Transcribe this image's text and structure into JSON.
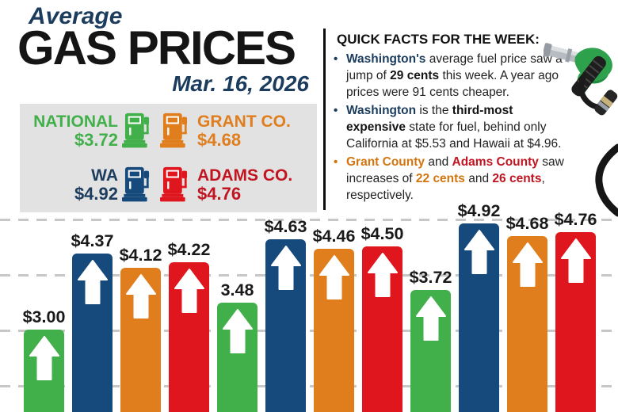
{
  "header": {
    "kicker": "Average",
    "title": "GAS PRICES",
    "date": "Mar. 16, 2026"
  },
  "legend": {
    "items": [
      {
        "label": "NATIONAL",
        "value": "$3.72",
        "text_color": "green",
        "pump_color": "green"
      },
      {
        "label": "GRANT CO.",
        "value": "$4.68",
        "text_color": "orange",
        "pump_color": "orange"
      },
      {
        "label": "WA",
        "value": "$4.92",
        "text_color": "navy_text",
        "pump_color": "blue"
      },
      {
        "label": "ADAMS CO.",
        "value": "$4.76",
        "text_color": "red_text",
        "pump_color": "red"
      }
    ]
  },
  "quick_facts": {
    "heading": "QUICK FACTS FOR THE WEEK:",
    "bullets": [
      {
        "bullet_color": "navy_text",
        "segments": [
          {
            "style": "navy",
            "text": "Washington's"
          },
          {
            "style": "plain",
            "text": " average fuel price saw a\njump of "
          },
          {
            "style": "bold",
            "text": "29 cents"
          },
          {
            "style": "plain",
            "text": " this week. A year ago\nprices were 91 cents cheaper."
          }
        ]
      },
      {
        "bullet_color": "navy_text",
        "segments": [
          {
            "style": "navy",
            "text": "Washington"
          },
          {
            "style": "plain",
            "text": " is the "
          },
          {
            "style": "bold",
            "text": "third-most\nexpensive"
          },
          {
            "style": "plain",
            "text": " state for fuel, behind only\nCalifornia at $5.53 and Hawaii at $4.96."
          }
        ]
      },
      {
        "bullet_color": "orange_text",
        "segments": [
          {
            "style": "orange",
            "text": "Grant County"
          },
          {
            "style": "plain",
            "text": " and "
          },
          {
            "style": "red",
            "text": "Adams County"
          },
          {
            "style": "plain",
            "text": " saw\nincreases of "
          },
          {
            "style": "orange",
            "text": "22 cents"
          },
          {
            "style": "plain",
            "text": " and "
          },
          {
            "style": "red",
            "text": "26 cents"
          },
          {
            "style": "plain",
            "text": ",\nrespectively."
          }
        ]
      }
    ]
  },
  "chart_data": {
    "type": "bar",
    "title": "",
    "ylabel": "",
    "xlabel": "",
    "units": "USD per gallon",
    "bars": [
      {
        "label": "$3.00",
        "value": 3.0,
        "series": "NATIONAL",
        "color_key": "green"
      },
      {
        "label": "$4.37",
        "value": 4.37,
        "series": "WA",
        "color_key": "blue"
      },
      {
        "label": "$4.12",
        "value": 4.12,
        "series": "GRANT CO.",
        "color_key": "orange"
      },
      {
        "label": "$4.22",
        "value": 4.22,
        "series": "ADAMS CO.",
        "color_key": "red"
      },
      {
        "label": "3.48",
        "value": 3.48,
        "series": "NATIONAL",
        "color_key": "green"
      },
      {
        "label": "$4.63",
        "value": 4.63,
        "series": "WA",
        "color_key": "blue"
      },
      {
        "label": "$4.46",
        "value": 4.46,
        "series": "GRANT CO.",
        "color_key": "orange"
      },
      {
        "label": "$4.50",
        "value": 4.5,
        "series": "ADAMS CO.",
        "color_key": "red"
      },
      {
        "label": "$3.72",
        "value": 3.72,
        "series": "NATIONAL",
        "color_key": "green"
      },
      {
        "label": "$4.92",
        "value": 4.92,
        "series": "WA",
        "color_key": "blue"
      },
      {
        "label": "$4.68",
        "value": 4.68,
        "series": "GRANT CO.",
        "color_key": "orange"
      },
      {
        "label": "$4.76",
        "value": 4.76,
        "series": "ADAMS CO.",
        "color_key": "red"
      }
    ],
    "series_pattern": [
      "green",
      "blue",
      "orange",
      "red"
    ],
    "bar_arrow": "up",
    "gridline_values": [
      5,
      4,
      3,
      2
    ],
    "ytick_labels_visible": false,
    "grid": "dashed-horizontal",
    "baseline_cropped": true
  },
  "colors": {
    "green": "#41b04a",
    "blue": "#174a7c",
    "orange": "#e07d1d",
    "red": "#e0161f",
    "navy_text": "#1c3c5e",
    "orange_text": "#d3750f",
    "red_text": "#c11420",
    "title_dark": "#151515",
    "legend_bg": "#e2e2e2",
    "gridline": "#c7c7c7",
    "body_text": "#222222"
  },
  "icons": {
    "gas-pump-icon": "stylized fuel pump",
    "fuel-nozzle-icon": "green fuel nozzle with black grip and hose",
    "hose-icon": "curved black hose segment",
    "up-arrow-icon": "white block arrow pointing up"
  }
}
